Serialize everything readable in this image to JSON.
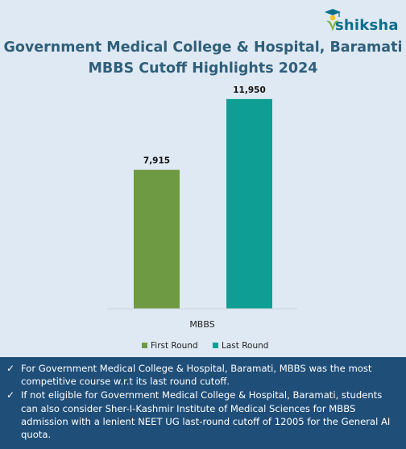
{
  "brand": {
    "name": "shiksha",
    "colors": {
      "teal": "#0d6e8c",
      "yellow": "#f3c220",
      "green": "#7bb045"
    }
  },
  "title_line1": "Government Medical College & Hospital, Baramati",
  "title_line2": "MBBS Cutoff Highlights 2024",
  "chart_data": {
    "type": "bar",
    "categories": [
      "MBBS"
    ],
    "series": [
      {
        "name": "First Round",
        "values": [
          7915
        ],
        "labels": [
          "7,915"
        ],
        "color": "#6e9a43"
      },
      {
        "name": "Last Round",
        "values": [
          11950
        ],
        "labels": [
          "11,950"
        ],
        "color": "#0f9e93"
      }
    ],
    "ylim": [
      0,
      13000
    ],
    "grid": false,
    "legend_position": "bottom",
    "title": "Government Medical College & Hospital, Baramati MBBS Cutoff Highlights 2024",
    "xlabel": "",
    "ylabel": ""
  },
  "footer": {
    "background": "#1f4e79",
    "bullets": [
      "For Government Medical College & Hospital, Baramati, MBBS was the most competitive course w.r.t its last round cutoff.",
      "If not eligible for Government Medical College & Hospital, Baramati, students can also consider Sher-I-Kashmir Institute of Medical Sciences for MBBS admission with a lenient NEET UG last-round cutoff of 12005 for the General AI quota."
    ]
  }
}
